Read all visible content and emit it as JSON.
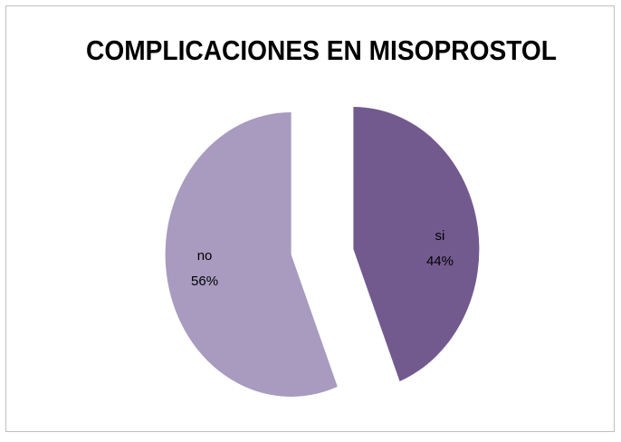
{
  "chart_data": {
    "type": "pie",
    "title": "COMPLICACIONES EN MISOPROSTOL",
    "categories": [
      "si",
      "no"
    ],
    "values": [
      44,
      56
    ],
    "value_labels": [
      "44%",
      "56%"
    ],
    "colors": [
      "#725a8f",
      "#a89bbf"
    ]
  }
}
